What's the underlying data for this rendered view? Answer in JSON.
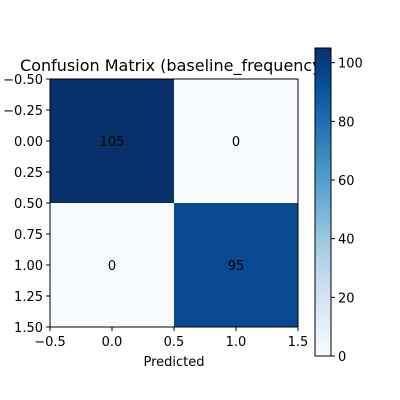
{
  "chart_data": {
    "type": "heatmap",
    "title": "Confusion Matrix (baseline_frequency)",
    "xlabel": "Predicted",
    "ylabel": "",
    "matrix": [
      [
        105,
        0
      ],
      [
        0,
        95
      ]
    ],
    "cell_labels": [
      "105",
      "0",
      "0",
      "95"
    ],
    "x_ticks": [
      "−0.5",
      "0.0",
      "0.5",
      "1.0",
      "1.5"
    ],
    "y_ticks": [
      "−0.50",
      "−0.25",
      "0.00",
      "0.25",
      "0.50",
      "0.75",
      "1.00",
      "1.25",
      "1.50"
    ],
    "xlim": [
      -0.5,
      1.5
    ],
    "ylim": [
      1.5,
      -0.5
    ],
    "colormap": "Blues",
    "colorbar": {
      "range": [
        0,
        105
      ],
      "ticks": [
        "0",
        "20",
        "40",
        "60",
        "80",
        "100"
      ]
    }
  }
}
